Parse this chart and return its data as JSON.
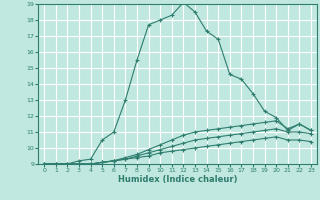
{
  "xlabel": "Humidex (Indice chaleur)",
  "ylabel": "",
  "background_color": "#c0e8e0",
  "grid_color": "#ffffff",
  "line_color": "#2e7d6e",
  "xlim": [
    -0.5,
    23.5
  ],
  "ylim": [
    9,
    19
  ],
  "xticks": [
    0,
    1,
    2,
    3,
    4,
    5,
    6,
    7,
    8,
    9,
    10,
    11,
    12,
    13,
    14,
    15,
    16,
    17,
    18,
    19,
    20,
    21,
    22,
    23
  ],
  "yticks": [
    9,
    10,
    11,
    12,
    13,
    14,
    15,
    16,
    17,
    18,
    19
  ],
  "series": [
    {
      "x": [
        0,
        1,
        2,
        3,
        4,
        5,
        6,
        7,
        8,
        9,
        10,
        11,
        12,
        13,
        14,
        15,
        16,
        17,
        18,
        19,
        20,
        21,
        22,
        23
      ],
      "y": [
        9,
        9,
        9,
        9.2,
        9.3,
        10.5,
        11,
        13,
        15.5,
        17.7,
        18,
        18.3,
        19.1,
        18.5,
        17.3,
        16.8,
        14.6,
        14.3,
        13.4,
        12.3,
        11.9,
        11.1,
        11.5,
        11.1
      ]
    },
    {
      "x": [
        0,
        1,
        2,
        3,
        4,
        5,
        6,
        7,
        8,
        9,
        10,
        11,
        12,
        13,
        14,
        15,
        16,
        17,
        18,
        19,
        20,
        21,
        22,
        23
      ],
      "y": [
        9,
        9,
        9,
        9,
        9,
        9.1,
        9.2,
        9.4,
        9.6,
        9.9,
        10.2,
        10.5,
        10.8,
        11.0,
        11.1,
        11.2,
        11.3,
        11.4,
        11.5,
        11.6,
        11.7,
        11.2,
        11.5,
        11.1
      ]
    },
    {
      "x": [
        0,
        1,
        2,
        3,
        4,
        5,
        6,
        7,
        8,
        9,
        10,
        11,
        12,
        13,
        14,
        15,
        16,
        17,
        18,
        19,
        20,
        21,
        22,
        23
      ],
      "y": [
        9,
        9,
        9,
        9,
        9,
        9.1,
        9.2,
        9.3,
        9.5,
        9.7,
        9.9,
        10.1,
        10.3,
        10.5,
        10.6,
        10.7,
        10.8,
        10.9,
        11.0,
        11.1,
        11.2,
        11.0,
        11.0,
        10.9
      ]
    },
    {
      "x": [
        0,
        1,
        2,
        3,
        4,
        5,
        6,
        7,
        8,
        9,
        10,
        11,
        12,
        13,
        14,
        15,
        16,
        17,
        18,
        19,
        20,
        21,
        22,
        23
      ],
      "y": [
        9,
        9,
        9,
        9,
        9,
        9.1,
        9.2,
        9.3,
        9.4,
        9.5,
        9.7,
        9.8,
        9.9,
        10.0,
        10.1,
        10.2,
        10.3,
        10.4,
        10.5,
        10.6,
        10.7,
        10.5,
        10.5,
        10.4
      ]
    }
  ]
}
